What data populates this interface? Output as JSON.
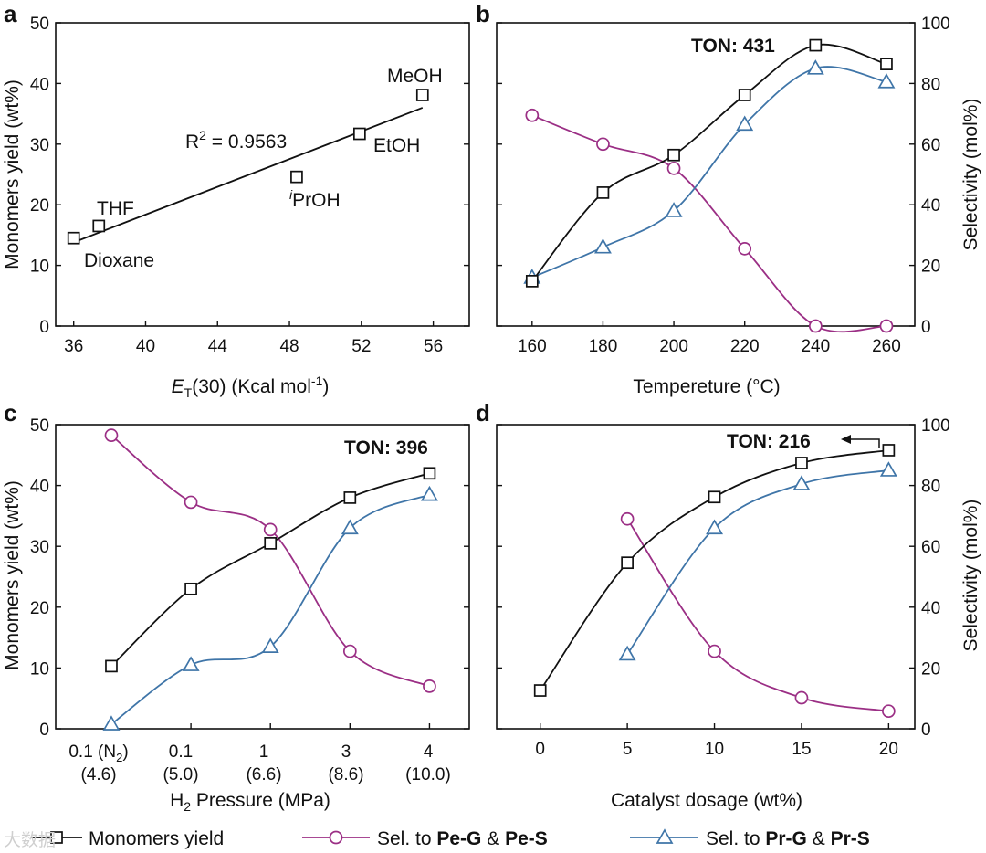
{
  "colors": {
    "yield": "#111111",
    "pe": "#9b2f85",
    "pr": "#3f75a8"
  },
  "legend": {
    "yield": "Monomers yield",
    "pe_prefix": "Sel. to ",
    "pe_a": "Pe-G",
    "pe_amp": " & ",
    "pe_b": "Pe-S",
    "pr_prefix": "Sel. to ",
    "pr_a": "Pr-G",
    "pr_amp": " & ",
    "pr_b": "Pr-S"
  },
  "watermark": "大数据",
  "chart_data": [
    {
      "panel": "a",
      "type": "scatter",
      "xlabel_e": "E",
      "xlabel_t": "T",
      "xlabel_rest": "(30) (Kcal mol",
      "xlabel_sup": "-1",
      "xlabel_close": ")",
      "ylabel": "Monomers yield (wt%)",
      "xlim": [
        35,
        58
      ],
      "ylim": [
        0,
        50
      ],
      "xticks": [
        "36",
        "40",
        "44",
        "48",
        "52",
        "56"
      ],
      "yticks": [
        "0",
        "10",
        "20",
        "30",
        "40",
        "50"
      ],
      "points": [
        {
          "label": "Dioxane",
          "x": 36.0,
          "y": 14.5
        },
        {
          "label": "THF",
          "x": 37.4,
          "y": 16.5
        },
        {
          "label": "PrOH",
          "label_sup": "i",
          "x": 48.4,
          "y": 24.6
        },
        {
          "label": "EtOH",
          "x": 51.9,
          "y": 31.7
        },
        {
          "label": "MeOH",
          "x": 55.4,
          "y": 38.1
        }
      ],
      "fit": {
        "x": [
          36.0,
          55.4
        ],
        "y": [
          13.8,
          36.0
        ]
      },
      "r2": {
        "prefix": "R",
        "sup": "2",
        "rest": " = 0.9563"
      }
    },
    {
      "panel": "b",
      "type": "line",
      "xlabel": "Tempereture (°C)",
      "ylabel": "Monomers yield (wt%)",
      "y2label": "Selectivity (mol%)",
      "xlim": [
        150,
        268
      ],
      "ylim": [
        0,
        50
      ],
      "y2lim": [
        0,
        100
      ],
      "xticks": [
        160,
        180,
        200,
        220,
        240,
        260
      ],
      "yticks": [
        0,
        10,
        20,
        30,
        40,
        50
      ],
      "y2ticks": [
        0,
        20,
        40,
        60,
        80,
        100
      ],
      "ton": "TON: 431",
      "series": [
        {
          "name": "Monomers yield",
          "axis": "left",
          "x": [
            160,
            180,
            200,
            220,
            240,
            260
          ],
          "y": [
            7.4,
            22.0,
            28.2,
            38.1,
            46.3,
            43.2
          ]
        },
        {
          "name": "Sel. to Pe-G & Pe-S",
          "axis": "right",
          "x": [
            160,
            180,
            200,
            220,
            240,
            260
          ],
          "y": [
            69.5,
            60.0,
            52.0,
            25.5,
            0,
            0
          ]
        },
        {
          "name": "Sel. to Pr-G & Pr-S",
          "axis": "right",
          "x": [
            160,
            180,
            200,
            220,
            240,
            260
          ],
          "y": [
            16.0,
            26.0,
            38.0,
            66.5,
            85.0,
            80.5
          ]
        }
      ]
    },
    {
      "panel": "c",
      "type": "line",
      "xlabel_pre": "H",
      "xlabel_sub": "2",
      "xlabel_post": " Pressure (MPa)",
      "ylabel": "Monomers yield (wt%)",
      "xlim": [
        -0.7,
        4.5
      ],
      "ylim": [
        0,
        50
      ],
      "x": [
        0,
        1,
        2,
        3,
        4
      ],
      "xticks_top": [
        "0.1 (N",
        "0.1",
        "1",
        "3",
        "4"
      ],
      "xtick0_sub": "2",
      "xtick0_close": ")",
      "xticks_bottom": [
        "(4.6)",
        "(5.0)",
        "(6.6)",
        "(8.6)",
        "(10.0)"
      ],
      "yticks": [
        0,
        10,
        20,
        30,
        40,
        50
      ],
      "ton": "TON: 396",
      "series": [
        {
          "name": "Monomers yield",
          "axis": "left",
          "y": [
            10.3,
            23.0,
            30.5,
            38.0,
            42.0
          ]
        },
        {
          "name": "Sel. to Pe-G & Pe-S",
          "axis": "right",
          "y": [
            96.5,
            74.5,
            65.5,
            25.5,
            14.0
          ]
        },
        {
          "name": "Sel. to Pr-G & Pr-S",
          "axis": "right",
          "y": [
            1.5,
            21.0,
            27.0,
            66.0,
            77.0
          ]
        }
      ]
    },
    {
      "panel": "d",
      "type": "line",
      "xlabel": "Catalyst dosage (wt%)",
      "y2label": "Selectivity (mol%)",
      "xlim": [
        -2.5,
        21.5
      ],
      "ylim": [
        0,
        50
      ],
      "y2lim": [
        0,
        100
      ],
      "xticks": [
        0,
        5,
        10,
        15,
        20
      ],
      "y2ticks": [
        0,
        20,
        40,
        60,
        80,
        100
      ],
      "ton": "TON: 216",
      "series": [
        {
          "name": "Monomers yield",
          "axis": "left",
          "x": [
            0,
            5,
            10,
            15,
            20
          ],
          "y": [
            6.3,
            27.3,
            38.1,
            43.7,
            45.8
          ]
        },
        {
          "name": "Sel. to Pe-G & Pe-S",
          "axis": "right",
          "x": [
            5,
            10,
            15,
            20
          ],
          "y": [
            69.0,
            25.5,
            10.2,
            5.8
          ]
        },
        {
          "name": "Sel. to Pr-G & Pr-S",
          "axis": "right",
          "x": [
            5,
            10,
            15,
            20
          ],
          "y": [
            24.5,
            66.0,
            80.5,
            85.0
          ]
        }
      ]
    }
  ]
}
